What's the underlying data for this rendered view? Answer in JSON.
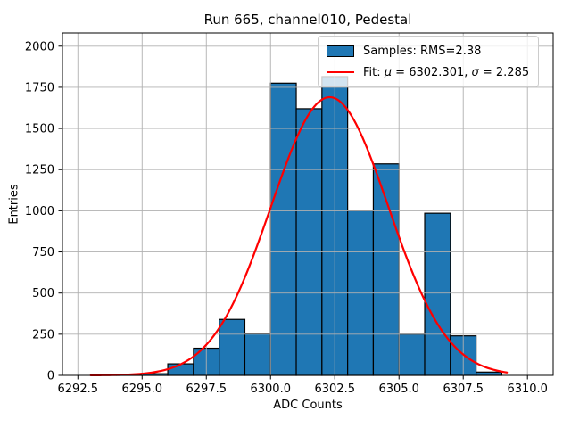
{
  "chart_data": {
    "type": "bar",
    "subtype": "histogram-with-gaussian-fit",
    "title": "Run 665, channel010, Pedestal",
    "xlabel": "ADC Counts",
    "ylabel": "Entries",
    "xlim": [
      6291.9,
      6311.0
    ],
    "ylim": [
      0,
      2080
    ],
    "x_ticks": [
      "6292.5",
      "6295.0",
      "6297.5",
      "6300.0",
      "6302.5",
      "6305.0",
      "6307.5",
      "6310.0"
    ],
    "y_ticks": [
      "0",
      "250",
      "500",
      "750",
      "1000",
      "1250",
      "1500",
      "1750",
      "2000"
    ],
    "grid": true,
    "grid_color": "#b0b0b0",
    "histogram": {
      "bin_edges": [
        6294,
        6295,
        6296,
        6297,
        6298,
        6299,
        6300,
        6301,
        6302,
        6303,
        6304,
        6305,
        6306,
        6307,
        6308,
        6309
      ],
      "counts": [
        3,
        10,
        70,
        165,
        340,
        255,
        1775,
        1620,
        1815,
        1000,
        1285,
        250,
        985,
        240,
        20
      ],
      "fill_color": "#1f77b4",
      "edge_color": "#000000"
    },
    "fit_curve": {
      "mu": 6302.301,
      "sigma": 2.285,
      "amplitude": 1690,
      "x_start": 6293.0,
      "x_end": 6309.2,
      "color": "#ff0000"
    },
    "legend": {
      "position": "upper-right",
      "items": [
        {
          "label": "Samples: RMS=2.38",
          "marker": "patch",
          "color": "#1f77b4"
        },
        {
          "label": "Fit: μ = 6302.301, σ = 2.285",
          "marker": "line",
          "color": "#ff0000"
        }
      ]
    }
  }
}
